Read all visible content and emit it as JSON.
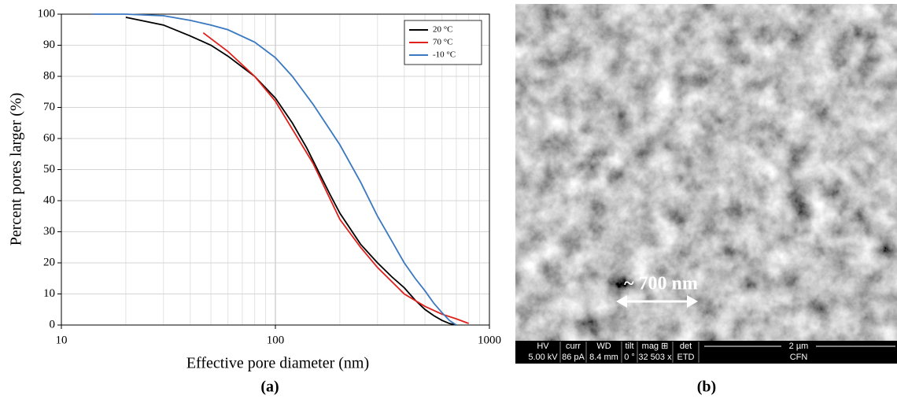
{
  "chart_data": {
    "type": "line",
    "x_label": "Effective pore diameter (nm)",
    "y_label": "Percent pores larger (%)",
    "log_x": true,
    "xlim": [
      10,
      1000
    ],
    "xticks": [
      10,
      100,
      1000
    ],
    "xminor_ticks": [
      20,
      30,
      40,
      50,
      60,
      70,
      80,
      90,
      200,
      300,
      400,
      500,
      600,
      700,
      800,
      900
    ],
    "ylim": [
      0,
      100
    ],
    "yticks": [
      0,
      10,
      20,
      30,
      40,
      50,
      60,
      70,
      80,
      90,
      100
    ],
    "grid": true,
    "legend": "upper right",
    "series": [
      {
        "name": "20 °C",
        "color": "#000000",
        "x": [
          20,
          30,
          40,
          50,
          60,
          70,
          80,
          100,
          120,
          140,
          160,
          180,
          200,
          250,
          300,
          350,
          400,
          450,
          500,
          550,
          600,
          650,
          700
        ],
        "values": [
          99,
          96.5,
          93,
          90,
          86.5,
          83,
          80,
          73,
          65,
          57,
          49,
          42,
          36,
          26,
          20,
          15.5,
          12,
          8,
          5,
          3,
          1.5,
          0.5,
          0
        ]
      },
      {
        "name": "70 °C",
        "color": "#e0201b",
        "x": [
          46,
          60,
          80,
          100,
          150,
          200,
          250,
          300,
          400,
          500,
          600,
          700,
          800
        ],
        "values": [
          94,
          88,
          80,
          72,
          52,
          34,
          25,
          18.5,
          10,
          6,
          3.5,
          2,
          0.5
        ]
      },
      {
        "name": "-10 °C",
        "color": "#3a78c0",
        "x": [
          14,
          20,
          30,
          40,
          50,
          60,
          80,
          100,
          120,
          150,
          200,
          250,
          300,
          350,
          400,
          450,
          500,
          550,
          600,
          650,
          700
        ],
        "values": [
          100,
          100,
          99.5,
          98,
          96.5,
          95,
          91,
          86,
          80,
          71,
          58,
          46,
          35,
          27,
          20,
          15,
          11,
          7,
          4,
          1.5,
          0
        ]
      }
    ]
  },
  "captions": [
    "(a)",
    "(b)"
  ],
  "micrograph": {
    "annotation": "~ 700 nm",
    "info_bar": {
      "headers": [
        "HV",
        "curr",
        "WD",
        "tilt",
        "mag ⊞",
        "det"
      ],
      "values": [
        "5.00 kV",
        "86 pA",
        "8.4 mm",
        "0 °",
        "32 503 x",
        "ETD"
      ],
      "scale": "2 µm",
      "lab": "CFN"
    }
  }
}
